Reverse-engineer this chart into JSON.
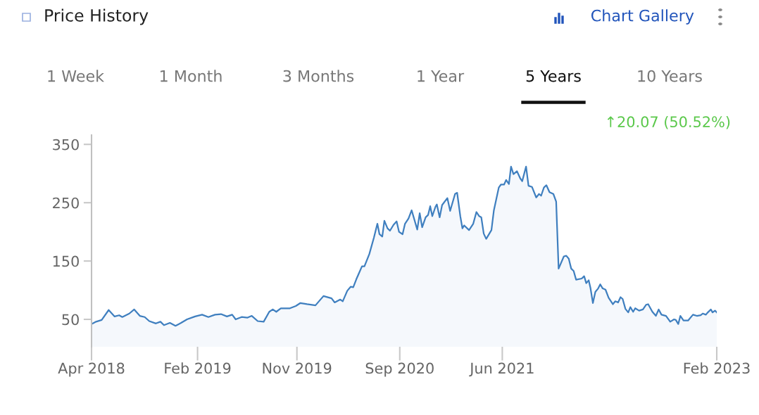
{
  "chart_data": {
    "type": "area",
    "title": "Price History",
    "annotations": [
      "1 Week",
      "1 Month",
      "3 Months",
      "1 Year",
      "5 Years",
      "10 Years",
      "Chart Gallery",
      "↑20.07 (50.52%)"
    ],
    "x": [
      "2018-04-04",
      "2018-04-17",
      "2018-05-03",
      "2018-05-23",
      "2018-06-09",
      "2018-06-22",
      "2018-07-01",
      "2018-07-21",
      "2018-08-04",
      "2018-08-20",
      "2018-09-03",
      "2018-09-16",
      "2018-10-05",
      "2018-10-18",
      "2018-10-28",
      "2018-11-14",
      "2018-11-30",
      "2018-12-16",
      "2019-01-02",
      "2019-01-25",
      "2019-02-14",
      "2019-03-04",
      "2019-03-23",
      "2019-04-09",
      "2019-04-26",
      "2019-05-11",
      "2019-05-21",
      "2019-06-07",
      "2019-06-24",
      "2019-07-06",
      "2019-07-23",
      "2019-08-09",
      "2019-08-25",
      "2019-09-04",
      "2019-09-14",
      "2019-09-27",
      "2019-10-23",
      "2019-11-09",
      "2019-11-22",
      "2019-12-11",
      "2020-01-04",
      "2020-01-27",
      "2020-02-19",
      "2020-02-28",
      "2020-03-15",
      "2020-03-22",
      "2020-04-04",
      "2020-04-14",
      "2020-04-21",
      "2020-04-30",
      "2020-05-16",
      "2020-05-23",
      "2020-06-06",
      "2020-06-19",
      "2020-06-29",
      "2020-07-05",
      "2020-07-13",
      "2020-07-19",
      "2020-07-28",
      "2020-08-04",
      "2020-08-14",
      "2020-08-23",
      "2020-08-30",
      "2020-09-09",
      "2020-09-16",
      "2020-09-26",
      "2020-10-05",
      "2020-10-21",
      "2020-10-28",
      "2020-11-04",
      "2020-11-14",
      "2020-11-21",
      "2020-11-27",
      "2020-12-03",
      "2020-12-12",
      "2020-12-16",
      "2020-12-24",
      "2020-12-31",
      "2021-01-15",
      "2021-01-23",
      "2021-02-06",
      "2021-02-12",
      "2021-02-21",
      "2021-02-27",
      "2021-03-04",
      "2021-03-18",
      "2021-03-30",
      "2021-04-08",
      "2021-04-16",
      "2021-04-22",
      "2021-04-29",
      "2021-05-06",
      "2021-05-21",
      "2021-05-28",
      "2021-06-11",
      "2021-06-17",
      "2021-06-26",
      "2021-07-02",
      "2021-07-10",
      "2021-07-16",
      "2021-07-23",
      "2021-08-02",
      "2021-08-12",
      "2021-08-17",
      "2021-08-28",
      "2021-09-04",
      "2021-09-14",
      "2021-09-26",
      "2021-10-04",
      "2021-10-10",
      "2021-10-18",
      "2021-10-25",
      "2021-11-03",
      "2021-11-14",
      "2021-11-22",
      "2021-11-29",
      "2021-12-14",
      "2021-12-21",
      "2021-12-28",
      "2022-01-04",
      "2022-01-11",
      "2022-01-18",
      "2022-02-03",
      "2022-02-10",
      "2022-02-16",
      "2022-02-23",
      "2022-02-28",
      "2022-03-07",
      "2022-03-14",
      "2022-03-22",
      "2022-03-28",
      "2022-04-04",
      "2022-04-12",
      "2022-04-21",
      "2022-05-03",
      "2022-05-10",
      "2022-05-18",
      "2022-05-25",
      "2022-05-31",
      "2022-06-08",
      "2022-06-16",
      "2022-06-22",
      "2022-06-30",
      "2022-07-06",
      "2022-07-17",
      "2022-07-28",
      "2022-08-06",
      "2022-08-12",
      "2022-08-24",
      "2022-09-03",
      "2022-09-11",
      "2022-09-19",
      "2022-10-02",
      "2022-10-14",
      "2022-10-25",
      "2022-10-30",
      "2022-11-06",
      "2022-11-12",
      "2022-11-21",
      "2022-12-04",
      "2022-12-18",
      "2022-12-29",
      "2023-01-09",
      "2023-01-15",
      "2023-01-24",
      "2023-01-28",
      "2023-02-07",
      "2023-02-12",
      "2023-02-19",
      "2023-02-24"
    ],
    "series": [
      {
        "color": "#3f7fbf",
        "values": [
          42,
          46,
          49,
          66,
          55,
          57,
          54,
          60,
          67,
          56,
          54,
          47,
          43,
          46,
          40,
          44,
          39,
          44,
          50,
          55,
          58,
          54,
          58,
          59,
          55,
          58,
          50,
          54,
          53,
          56,
          47,
          46,
          63,
          67,
          63,
          69,
          69,
          73,
          78,
          76,
          74,
          90,
          86,
          79,
          84,
          81,
          99,
          106,
          105,
          119,
          141,
          141,
          162,
          190,
          214,
          196,
          192,
          219,
          206,
          202,
          212,
          218,
          200,
          196,
          214,
          223,
          237,
          204,
          232,
          208,
          225,
          229,
          244,
          227,
          243,
          247,
          225,
          246,
          258,
          236,
          265,
          267,
          227,
          206,
          211,
          203,
          214,
          234,
          227,
          225,
          197,
          188,
          203,
          237,
          276,
          281,
          281,
          289,
          282,
          312,
          299,
          304,
          291,
          287,
          312,
          279,
          277,
          259,
          265,
          262,
          276,
          280,
          268,
          265,
          252,
          137,
          158,
          159,
          154,
          137,
          133,
          118,
          120,
          124,
          112,
          117,
          104,
          78,
          97,
          103,
          110,
          103,
          101,
          87,
          76,
          81,
          79,
          88,
          85,
          68,
          62,
          71,
          63,
          69,
          65,
          67,
          75,
          76,
          63,
          56,
          67,
          58,
          56,
          46,
          50,
          49,
          42,
          56,
          48,
          48,
          58,
          56,
          57,
          60,
          58,
          61,
          67,
          62,
          65,
          62
        ]
      }
    ],
    "xlim": [
      "2018-04-04",
      "2023-02-24"
    ],
    "xticks": [
      {
        "value": "2018-04-04",
        "label": "Apr 2018"
      },
      {
        "value": "2019-02-01",
        "label": "Feb 2019"
      },
      {
        "value": "2019-11-12",
        "label": "Nov 2019"
      },
      {
        "value": "2020-09-01",
        "label": "Sep 2020"
      },
      {
        "value": "2021-06-21",
        "label": "Jun 2021"
      },
      {
        "value": "2023-02-24",
        "label": "Feb 2023"
      }
    ],
    "ylim": [
      3,
      366
    ],
    "yticks": [
      50,
      150,
      250,
      350
    ],
    "grid": false,
    "legend": false
  }
}
